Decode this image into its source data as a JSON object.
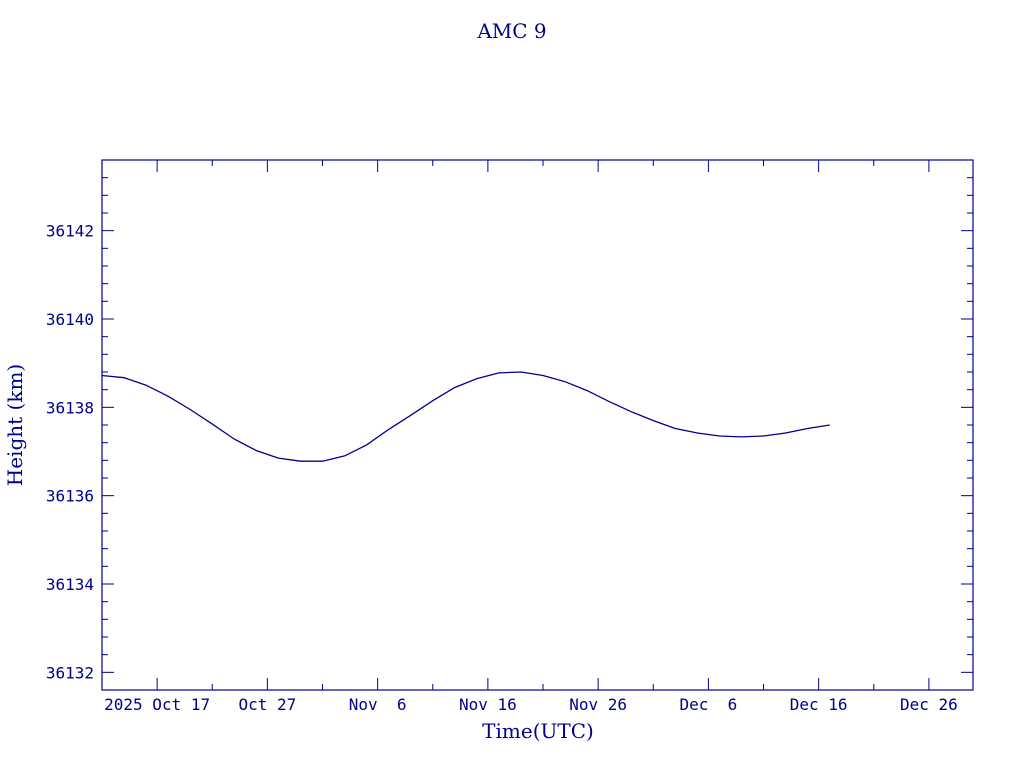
{
  "chart_data": {
    "type": "line",
    "title": "AMC 9",
    "xlabel": "Time(UTC)",
    "ylabel": "Height (km)",
    "x_ticks": [
      {
        "date": "2025-10-17",
        "label": "2025 Oct 17"
      },
      {
        "date": "2025-10-27",
        "label": "Oct 27"
      },
      {
        "date": "2025-11-06",
        "label": "Nov  6"
      },
      {
        "date": "2025-11-16",
        "label": "Nov 16"
      },
      {
        "date": "2025-11-26",
        "label": "Nov 26"
      },
      {
        "date": "2025-12-06",
        "label": "Dec  6"
      },
      {
        "date": "2025-12-16",
        "label": "Dec 16"
      },
      {
        "date": "2025-12-26",
        "label": "Dec 26"
      }
    ],
    "y_ticks": [
      36132,
      36134,
      36136,
      36138,
      36140,
      36142
    ],
    "xlim": [
      "2025-10-12",
      "2025-12-30"
    ],
    "ylim": [
      36131.6,
      36143.6
    ],
    "grid": false,
    "series": [
      {
        "points": [
          {
            "x": "2025-10-12",
            "y": 36138.72
          },
          {
            "x": "2025-10-14",
            "y": 36138.67
          },
          {
            "x": "2025-10-16",
            "y": 36138.5
          },
          {
            "x": "2025-10-18",
            "y": 36138.25
          },
          {
            "x": "2025-10-20",
            "y": 36137.95
          },
          {
            "x": "2025-10-22",
            "y": 36137.62
          },
          {
            "x": "2025-10-24",
            "y": 36137.28
          },
          {
            "x": "2025-10-26",
            "y": 36137.02
          },
          {
            "x": "2025-10-28",
            "y": 36136.85
          },
          {
            "x": "2025-10-30",
            "y": 36136.78
          },
          {
            "x": "2025-11-01",
            "y": 36136.78
          },
          {
            "x": "2025-11-03",
            "y": 36136.9
          },
          {
            "x": "2025-11-05",
            "y": 36137.15
          },
          {
            "x": "2025-11-07",
            "y": 36137.5
          },
          {
            "x": "2025-11-09",
            "y": 36137.82
          },
          {
            "x": "2025-11-11",
            "y": 36138.15
          },
          {
            "x": "2025-11-13",
            "y": 36138.45
          },
          {
            "x": "2025-11-15",
            "y": 36138.65
          },
          {
            "x": "2025-11-17",
            "y": 36138.78
          },
          {
            "x": "2025-11-19",
            "y": 36138.8
          },
          {
            "x": "2025-11-21",
            "y": 36138.72
          },
          {
            "x": "2025-11-23",
            "y": 36138.58
          },
          {
            "x": "2025-11-25",
            "y": 36138.38
          },
          {
            "x": "2025-11-27",
            "y": 36138.13
          },
          {
            "x": "2025-11-29",
            "y": 36137.9
          },
          {
            "x": "2025-12-01",
            "y": 36137.7
          },
          {
            "x": "2025-12-03",
            "y": 36137.52
          },
          {
            "x": "2025-12-05",
            "y": 36137.42
          },
          {
            "x": "2025-12-07",
            "y": 36137.35
          },
          {
            "x": "2025-12-09",
            "y": 36137.33
          },
          {
            "x": "2025-12-11",
            "y": 36137.35
          },
          {
            "x": "2025-12-13",
            "y": 36137.42
          },
          {
            "x": "2025-12-15",
            "y": 36137.52
          },
          {
            "x": "2025-12-17",
            "y": 36137.6
          }
        ]
      }
    ]
  }
}
